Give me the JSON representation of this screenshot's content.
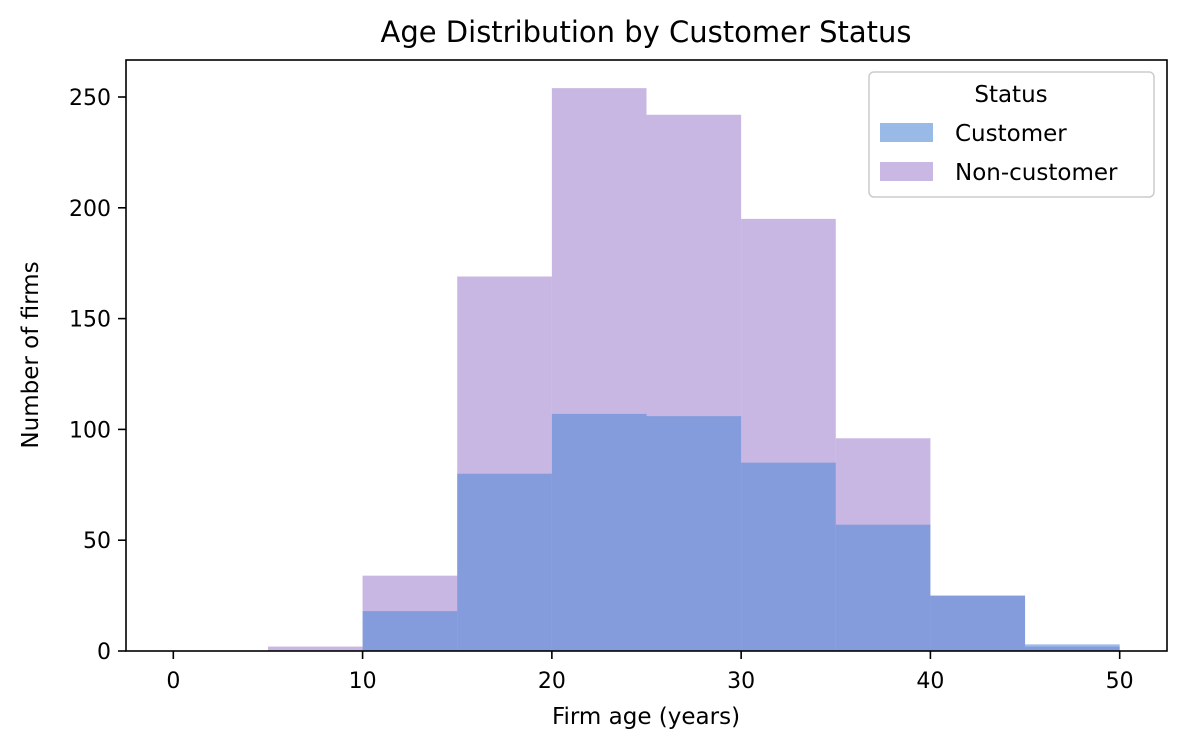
{
  "chart_data": {
    "type": "histogram",
    "title": "Age Distribution by Customer Status",
    "xlabel": "Firm age (years)",
    "ylabel": "Number of firms",
    "xlim": [
      -2.5,
      52.5
    ],
    "ylim": [
      0,
      266.7
    ],
    "x_ticks": [
      0,
      10,
      20,
      30,
      40,
      50
    ],
    "y_ticks": [
      0,
      50,
      100,
      150,
      200,
      250
    ],
    "bin_edges": [
      5,
      10,
      15,
      20,
      25,
      30,
      35,
      40,
      45,
      50
    ],
    "series": [
      {
        "name": "Non-customer",
        "color": "#9370c8",
        "opacity": 0.5,
        "values": [
          2,
          34,
          169,
          254,
          242,
          195,
          96,
          25,
          2
        ]
      },
      {
        "name": "Customer",
        "color": "#4a86d6",
        "opacity": 0.55,
        "values": [
          0,
          18,
          80,
          107,
          106,
          85,
          57,
          25,
          3
        ]
      }
    ],
    "legend": {
      "title": "Status",
      "position": "top-right",
      "entries": [
        {
          "label": "Customer",
          "color": "#99b9e6"
        },
        {
          "label": "Non-customer",
          "color": "#c9b8e3"
        }
      ]
    },
    "grid": false
  }
}
